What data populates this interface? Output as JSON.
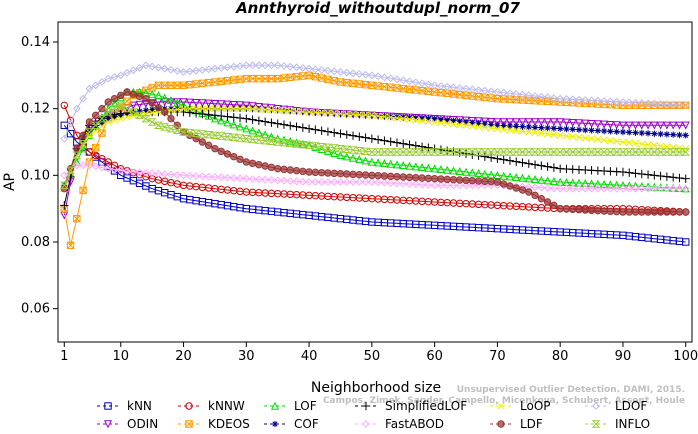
{
  "chart_data": {
    "type": "line",
    "title": "Annthyroid_withoutdupl_norm_07",
    "xlabel": "Neighborhood size",
    "ylabel": "AP",
    "xlim": [
      0,
      101
    ],
    "ylim": [
      0.05,
      0.146
    ],
    "xticks": [
      "1",
      "10",
      "20",
      "30",
      "40",
      "50",
      "60",
      "70",
      "80",
      "90",
      "100"
    ],
    "yticks": [
      "0.06",
      "0.08",
      "0.10",
      "0.12",
      "0.14"
    ],
    "legend_placement": "bottom",
    "credit_lines": [
      "Unsupervised Outlier Detection. DAMI, 2015.",
      "Campos, Zimek, Sander, Campello, Micenkova, Schubert, Assent, Houle"
    ],
    "series": [
      {
        "name": "kNN",
        "color": "#0000cc",
        "marker": "square",
        "x": [
          1,
          3,
          5,
          7,
          10,
          15,
          20,
          30,
          40,
          50,
          60,
          70,
          80,
          90,
          100
        ],
        "values": [
          0.115,
          0.11,
          0.107,
          0.104,
          0.1,
          0.096,
          0.093,
          0.09,
          0.088,
          0.086,
          0.085,
          0.084,
          0.083,
          0.082,
          0.08
        ]
      },
      {
        "name": "ODIN",
        "color": "#9900cc",
        "marker": "triangle-down",
        "x": [
          1,
          3,
          5,
          8,
          12,
          16,
          20,
          30,
          40,
          50,
          60,
          70,
          80,
          90,
          100
        ],
        "values": [
          0.088,
          0.108,
          0.114,
          0.118,
          0.121,
          0.122,
          0.122,
          0.121,
          0.119,
          0.118,
          0.117,
          0.116,
          0.116,
          0.115,
          0.115
        ]
      },
      {
        "name": "kNNW",
        "color": "#cc0000",
        "marker": "circle",
        "x": [
          1,
          3,
          5,
          8,
          10,
          15,
          20,
          30,
          40,
          50,
          60,
          70,
          80,
          90,
          100
        ],
        "values": [
          0.121,
          0.112,
          0.107,
          0.104,
          0.102,
          0.099,
          0.097,
          0.095,
          0.094,
          0.093,
          0.092,
          0.091,
          0.09,
          0.09,
          0.089
        ]
      },
      {
        "name": "KDEOS",
        "color": "#ff9900",
        "marker": "square-x",
        "x": [
          1,
          2,
          3,
          5,
          8,
          12,
          16,
          20,
          25,
          30,
          35,
          40,
          45,
          50,
          60,
          70,
          80,
          90,
          100
        ],
        "values": [
          0.09,
          0.079,
          0.087,
          0.104,
          0.117,
          0.124,
          0.127,
          0.127,
          0.128,
          0.129,
          0.129,
          0.13,
          0.128,
          0.127,
          0.125,
          0.123,
          0.122,
          0.121,
          0.121
        ]
      },
      {
        "name": "LOF",
        "color": "#00dd00",
        "marker": "triangle-up",
        "x": [
          1,
          3,
          5,
          8,
          11,
          13,
          16,
          20,
          25,
          30,
          35,
          40,
          45,
          50,
          60,
          70,
          80,
          90,
          100
        ],
        "values": [
          0.097,
          0.104,
          0.112,
          0.12,
          0.125,
          0.125,
          0.124,
          0.121,
          0.117,
          0.114,
          0.111,
          0.109,
          0.106,
          0.104,
          0.102,
          0.1,
          0.098,
          0.097,
          0.096
        ]
      },
      {
        "name": "COF",
        "color": "#000088",
        "marker": "asterisk",
        "x": [
          1,
          3,
          5,
          8,
          12,
          16,
          20,
          30,
          40,
          50,
          60,
          70,
          80,
          90,
          100
        ],
        "values": [
          0.097,
          0.107,
          0.113,
          0.117,
          0.119,
          0.12,
          0.12,
          0.12,
          0.119,
          0.118,
          0.117,
          0.115,
          0.114,
          0.113,
          0.112
        ]
      },
      {
        "name": "SimplifiedLOF",
        "color": "#000000",
        "marker": "plus",
        "x": [
          1,
          3,
          5,
          8,
          12,
          16,
          20,
          30,
          40,
          50,
          60,
          70,
          80,
          90,
          100
        ],
        "values": [
          0.091,
          0.108,
          0.115,
          0.118,
          0.119,
          0.119,
          0.119,
          0.117,
          0.114,
          0.111,
          0.108,
          0.105,
          0.102,
          0.101,
          0.099
        ]
      },
      {
        "name": "FastABOD",
        "color": "#ffaaff",
        "marker": "diamond",
        "x": [
          1,
          3,
          5,
          8,
          12,
          20,
          30,
          40,
          50,
          60,
          70,
          80,
          90,
          100
        ],
        "values": [
          0.1,
          0.103,
          0.103,
          0.102,
          0.101,
          0.1,
          0.099,
          0.098,
          0.098,
          0.097,
          0.097,
          0.096,
          0.096,
          0.096
        ]
      },
      {
        "name": "LoOP",
        "color": "#eeee00",
        "marker": "x",
        "x": [
          1,
          3,
          5,
          8,
          12,
          16,
          20,
          30,
          40,
          50,
          60,
          70,
          80,
          90,
          100
        ],
        "values": [
          0.096,
          0.106,
          0.112,
          0.116,
          0.118,
          0.119,
          0.12,
          0.12,
          0.119,
          0.118,
          0.116,
          0.114,
          0.112,
          0.11,
          0.108
        ]
      },
      {
        "name": "LDF",
        "color": "#993333",
        "marker": "circle-filled",
        "x": [
          1,
          3,
          5,
          8,
          11,
          14,
          17,
          20,
          25,
          30,
          35,
          40,
          50,
          60,
          70,
          75,
          80,
          90,
          100
        ],
        "values": [
          0.096,
          0.108,
          0.116,
          0.122,
          0.125,
          0.123,
          0.119,
          0.113,
          0.108,
          0.104,
          0.102,
          0.101,
          0.1,
          0.099,
          0.098,
          0.095,
          0.09,
          0.089,
          0.089
        ]
      },
      {
        "name": "LDOF",
        "color": "#bbbbee",
        "marker": "diamond",
        "x": [
          1,
          3,
          5,
          8,
          10,
          14,
          17,
          20,
          25,
          30,
          35,
          40,
          45,
          50,
          60,
          70,
          80,
          90,
          100
        ],
        "values": [
          0.111,
          0.12,
          0.126,
          0.129,
          0.13,
          0.133,
          0.132,
          0.131,
          0.132,
          0.133,
          0.133,
          0.132,
          0.131,
          0.13,
          0.127,
          0.125,
          0.123,
          0.122,
          0.121
        ]
      },
      {
        "name": "INFLO",
        "color": "#99cc33",
        "marker": "hourglass",
        "x": [
          1,
          3,
          5,
          8,
          10,
          13,
          16,
          20,
          25,
          30,
          35,
          40,
          45,
          50
        ],
        "values": [
          0.097,
          0.106,
          0.113,
          0.119,
          0.121,
          0.118,
          0.115,
          0.113,
          0.112,
          0.111,
          0.11,
          0.109,
          0.108,
          0.107
        ]
      }
    ]
  }
}
